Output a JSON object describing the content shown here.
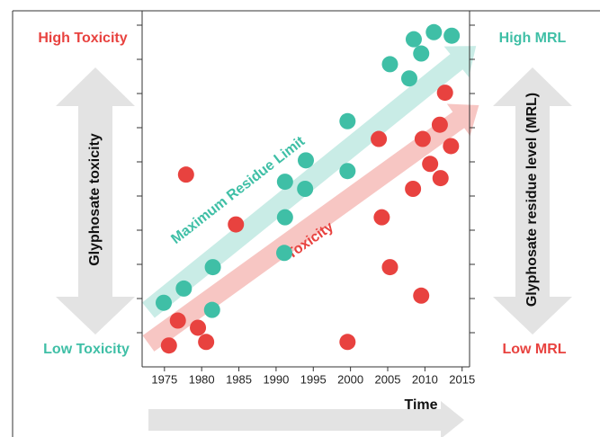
{
  "chart_data": {
    "type": "scatter",
    "left_top_label": "High Toxicity",
    "left_bottom_label": "Low Toxicity",
    "right_top_label": "High MRL",
    "right_bottom_label": "Low MRL",
    "left_axis_label": "Glyphosate toxicity",
    "right_axis_label": "Glyphosate residue level (MRL)",
    "x_label": "Time",
    "xlim": [
      1972,
      2016
    ],
    "xticks": [
      1975,
      1980,
      1985,
      1990,
      1995,
      2000,
      2005,
      2010,
      2015
    ],
    "ylim": [
      0,
      10
    ],
    "series": [
      {
        "name": "Maximum Residue Limit",
        "color": "#3fbfa6",
        "x": [
          1974.9,
          1977.6,
          1981.4,
          1981.5,
          1991.1,
          1991.2,
          1991.2,
          1993.9,
          1994.0,
          1999.6,
          1999.6,
          2005.3,
          2007.9,
          2008.5,
          2009.5,
          2011.2,
          2013.6
        ],
        "values": [
          1.8,
          2.2,
          1.6,
          2.8,
          3.2,
          4.2,
          5.2,
          5.0,
          5.8,
          5.5,
          6.9,
          8.5,
          8.1,
          9.2,
          8.8,
          9.4,
          9.3
        ]
      },
      {
        "name": "Toxicity",
        "color": "#e8423f",
        "x": [
          1975.6,
          1976.8,
          1977.9,
          1979.5,
          1980.6,
          1984.6,
          1999.6,
          2003.8,
          2004.2,
          2005.3,
          2008.4,
          2009.5,
          2009.7,
          2010.7,
          2012.0,
          2012.1,
          2012.7,
          2013.5
        ],
        "values": [
          0.6,
          1.3,
          5.4,
          1.1,
          0.7,
          4.0,
          0.7,
          6.4,
          4.2,
          2.8,
          5.0,
          2.0,
          6.4,
          5.7,
          6.8,
          5.3,
          7.7,
          6.2
        ]
      }
    ]
  }
}
